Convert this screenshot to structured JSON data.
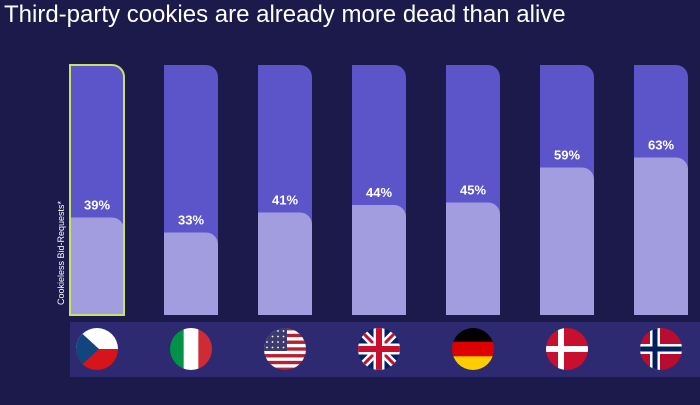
{
  "chart_data": {
    "type": "bar",
    "title": "Third-party cookies are already more dead than alive",
    "y_label": "Cookieless Bid-Requests*",
    "categories": [
      null,
      null,
      null,
      null,
      null,
      null,
      null
    ],
    "values": [
      39,
      33,
      41,
      44,
      45,
      59,
      63
    ],
    "value_labels": [
      "39%",
      "33%",
      "41%",
      "44%",
      "45%",
      "59%",
      "63%"
    ],
    "color": "#a29ddf",
    "background_color": "#5c54c9",
    "highlight_color": "#c8e06c",
    "ylim": [
      0,
      100
    ]
  }
}
